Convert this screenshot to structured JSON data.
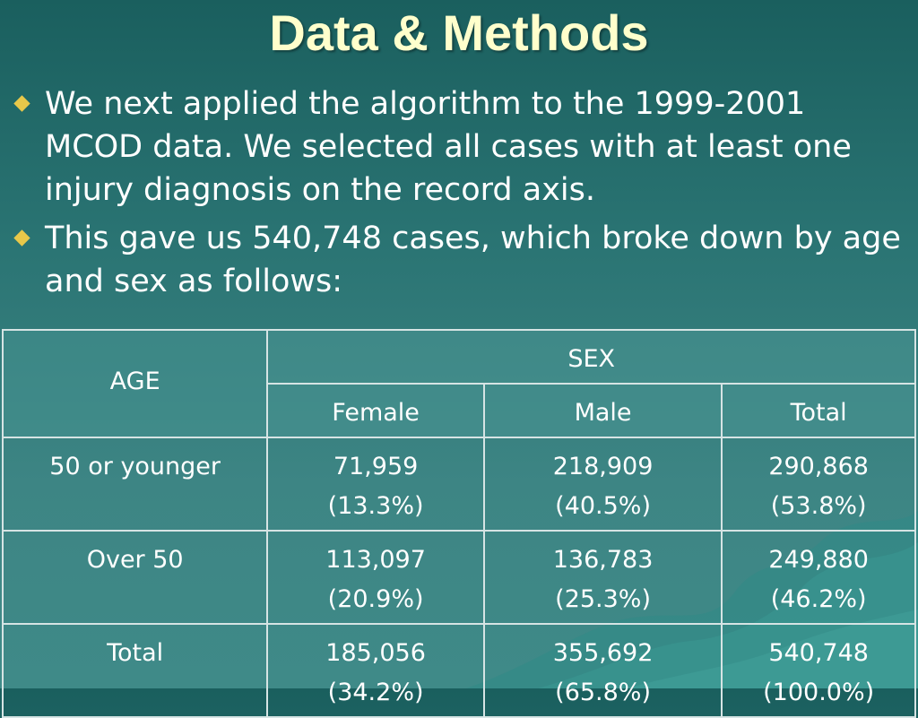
{
  "slide": {
    "title": "Data & Methods",
    "bullets": [
      "We next applied the algorithm to the 1999-2001 MCOD data.  We selected all cases with at least one injury diagnosis on the record axis.",
      "This gave us 540,748 cases, which broke down by age and sex as follows:"
    ]
  },
  "table": {
    "age_header": "AGE",
    "sex_header": "SEX",
    "columns": [
      "Female",
      "Male",
      "Total"
    ],
    "rows": [
      {
        "label": "50 or younger",
        "cells": [
          {
            "count": "71,959",
            "pct": "(13.3%)"
          },
          {
            "count": "218,909",
            "pct": "(40.5%)"
          },
          {
            "count": "290,868",
            "pct": "(53.8%)"
          }
        ]
      },
      {
        "label": "Over 50",
        "cells": [
          {
            "count": "113,097",
            "pct": "(20.9%)"
          },
          {
            "count": "136,783",
            "pct": "(25.3%)"
          },
          {
            "count": "249,880",
            "pct": "(46.2%)"
          }
        ]
      },
      {
        "label": "Total",
        "cells": [
          {
            "count": "185,056",
            "pct": "(34.2%)"
          },
          {
            "count": "355,692",
            "pct": "(65.8%)"
          },
          {
            "count": "540,748",
            "pct": "(100.0%)"
          }
        ]
      }
    ]
  },
  "colors": {
    "title": "#ffffcc",
    "bullet_marker": "#e8c84a",
    "background": "#2a7473"
  },
  "icons": {
    "bullet": "diamond-bullet-icon"
  }
}
